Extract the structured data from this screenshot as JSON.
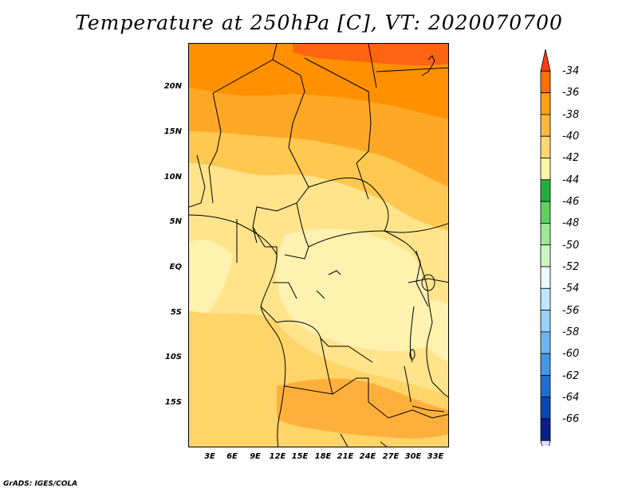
{
  "title": "Temperature at 250hPa [C], VT: 2020070700",
  "credit": "GrADS: IGES/COLA",
  "lat_labels": [
    "20N",
    "15N",
    "10N",
    "5N",
    "EQ",
    "5S",
    "10S",
    "15S"
  ],
  "lon_labels": [
    "3E",
    "6E",
    "9E",
    "12E",
    "15E",
    "18E",
    "21E",
    "24E",
    "27E",
    "30E",
    "33E"
  ],
  "colorbar": {
    "labels": [
      "-34",
      "-36",
      "-38",
      "-40",
      "-42",
      "-44",
      "-46",
      "-48",
      "-50",
      "-52",
      "-54",
      "-56",
      "-58",
      "-60",
      "-62",
      "-64",
      "-66"
    ],
    "colors": [
      "#ff3c14",
      "#ff6e00",
      "#ffa010",
      "#ffb83c",
      "#ffd870",
      "#fff4a8",
      "#22b03c",
      "#5fd05f",
      "#9ce896",
      "#caf6c6",
      "#ecfbff",
      "#bfe6ff",
      "#96d2fa",
      "#6eb4f0",
      "#4696e6",
      "#1e6ed2",
      "#0a46b4",
      "#08208c",
      "#dce0ff"
    ]
  }
}
